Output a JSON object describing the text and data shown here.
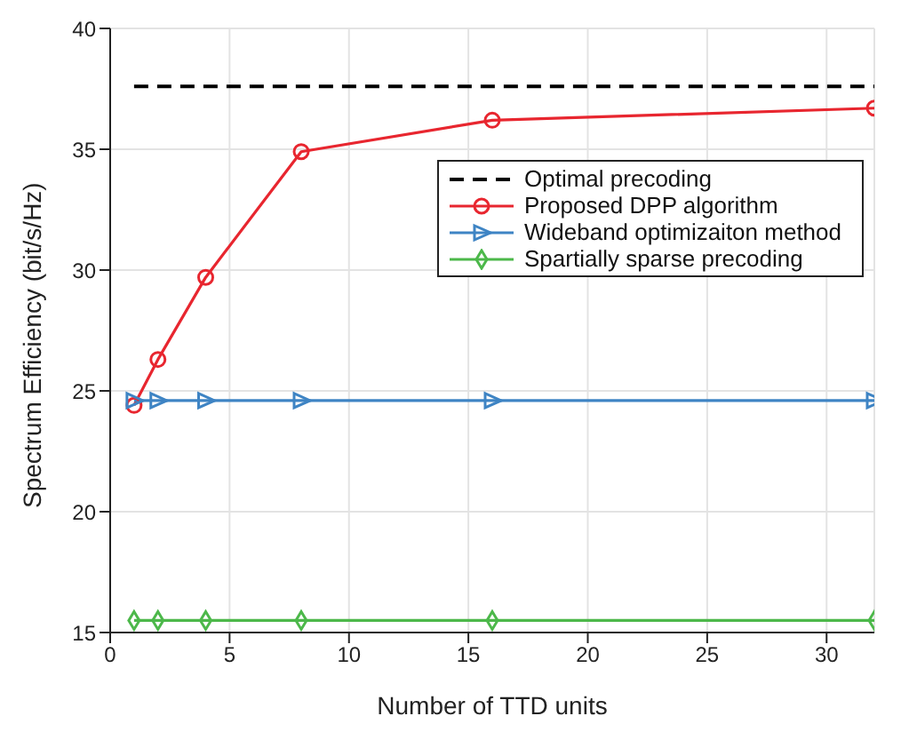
{
  "chart_data": {
    "type": "line",
    "xlabel": "Number of TTD units",
    "ylabel": "Spectrum Efficiency (bit/s/Hz)",
    "xlim": [
      0,
      32
    ],
    "xticks": [
      0,
      5,
      10,
      15,
      20,
      25,
      30
    ],
    "ylim": [
      15,
      40
    ],
    "yticks": [
      15,
      20,
      25,
      30,
      35,
      40
    ],
    "grid": true,
    "legend": "right",
    "series": [
      {
        "name": "Optimal precoding",
        "color": "#000000",
        "x": [
          1,
          32
        ],
        "values": [
          37.6,
          37.6
        ],
        "line_style": "dashed",
        "marker": "none"
      },
      {
        "name": "Proposed DPP algorithm",
        "color": "#e8262f",
        "x": [
          1,
          2,
          4,
          8,
          16,
          32
        ],
        "values": [
          24.4,
          26.3,
          29.7,
          34.9,
          36.2,
          36.7
        ],
        "line_style": "solid",
        "marker": "circle"
      },
      {
        "name": "Wideband optimizaiton method",
        "color": "#3e84c4",
        "x": [
          1,
          2,
          4,
          8,
          16,
          32
        ],
        "values": [
          24.6,
          24.6,
          24.6,
          24.6,
          24.6,
          24.6
        ],
        "line_style": "solid",
        "marker": "triangle"
      },
      {
        "name": "Spartially sparse precoding",
        "color": "#4cb84a",
        "x": [
          1,
          2,
          4,
          8,
          16,
          32
        ],
        "values": [
          15.5,
          15.5,
          15.5,
          15.5,
          15.5,
          15.5
        ],
        "line_style": "solid",
        "marker": "diamond"
      }
    ]
  }
}
